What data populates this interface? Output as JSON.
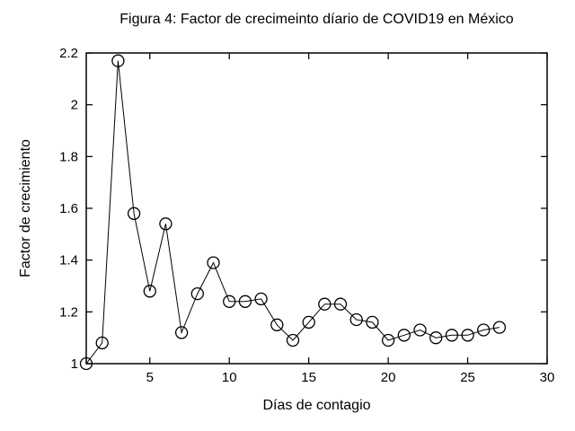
{
  "figure": {
    "title": "Figura 4: Factor de crecimeinto díario de COVID19 en México"
  },
  "chart_data": {
    "type": "line",
    "title": "Figura 4: Factor de crecimeinto díario de COVID19 en México",
    "xlabel": "Días de contagio",
    "ylabel": "Factor de crecimiento",
    "xlim": [
      1,
      30
    ],
    "ylim": [
      1,
      2.2
    ],
    "xticks": [
      5,
      10,
      15,
      20,
      25,
      30
    ],
    "yticks": [
      1,
      1.2,
      1.4,
      1.6,
      1.8,
      2,
      2.2
    ],
    "grid": false,
    "legend_position": "none",
    "marker": "open-circle",
    "line_color": "#000000",
    "marker_color": "#000000",
    "background_color": "#ffffff",
    "x": [
      1,
      2,
      3,
      4,
      5,
      6,
      7,
      8,
      9,
      10,
      11,
      12,
      13,
      14,
      15,
      16,
      17,
      18,
      19,
      20,
      21,
      22,
      23,
      24,
      25,
      26,
      27
    ],
    "y": [
      1.0,
      1.08,
      2.17,
      1.58,
      1.28,
      1.54,
      1.12,
      1.27,
      1.39,
      1.24,
      1.24,
      1.25,
      1.15,
      1.09,
      1.16,
      1.23,
      1.23,
      1.17,
      1.16,
      1.09,
      1.11,
      1.13,
      1.1,
      1.11,
      1.11,
      1.13,
      1.14
    ]
  }
}
